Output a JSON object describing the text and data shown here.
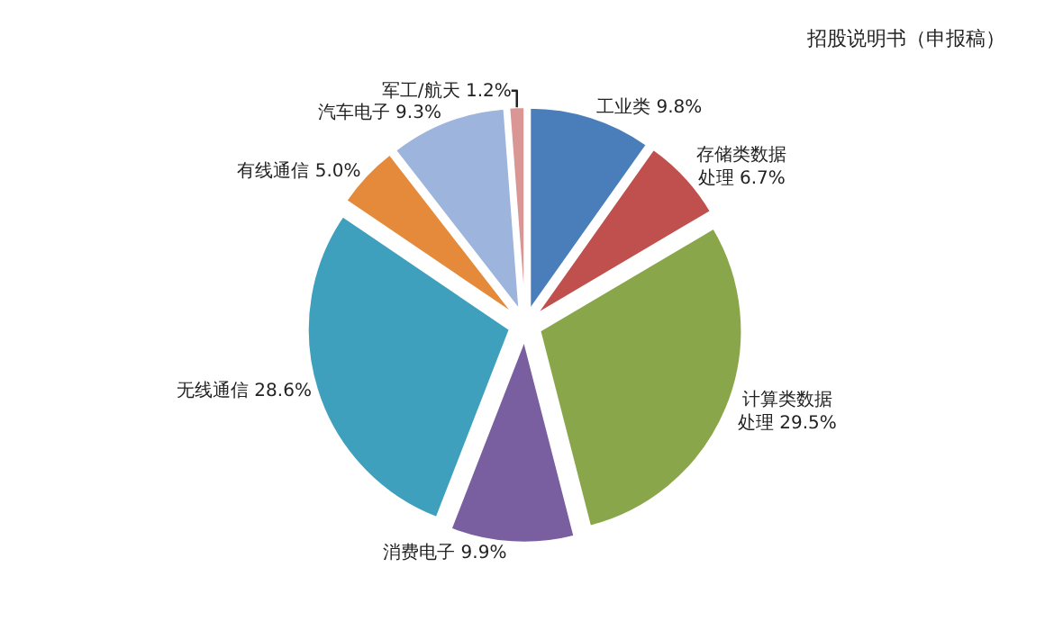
{
  "chart_data": {
    "type": "pie",
    "categories": [
      "工业类",
      "存储类数据处理",
      "计算类数据处理",
      "消费电子",
      "无线通信",
      "有线通信",
      "汽车电子",
      "军工/航天"
    ],
    "values": [
      9.8,
      6.7,
      29.5,
      9.9,
      28.6,
      5.0,
      9.3,
      1.2
    ],
    "value_labels": [
      "9.8%",
      "6.7%",
      "29.5%",
      "9.9%",
      "28.6%",
      "5.0%",
      "9.3%",
      "1.2%"
    ],
    "colors": [
      "#4a7ebb",
      "#c0504d",
      "#8aa64a",
      "#7a5fa0",
      "#3ea0bd",
      "#e48a3a",
      "#9db4dd",
      "#d99694"
    ],
    "annotations": [
      "招股说明书（申报稿）"
    ],
    "legend": false
  }
}
